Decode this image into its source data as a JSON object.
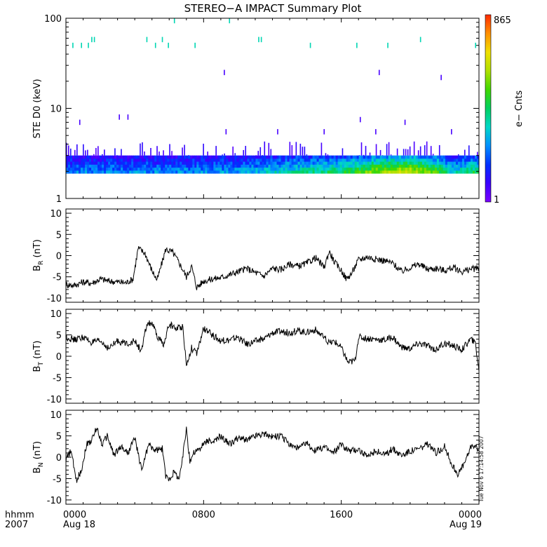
{
  "title": "STEREO−A IMPACT Summary Plot",
  "stamp": "Tue Nov  6 17:14:58 2007",
  "colorbar": {
    "label": "e− Cnts",
    "max_label": "865",
    "min_label": "1",
    "colors": [
      "#7a00ff",
      "#3a00ff",
      "#0030ff",
      "#0090ff",
      "#00d8c8",
      "#00d060",
      "#40d800",
      "#b0e000",
      "#f0e000",
      "#ff9000",
      "#ff2a00"
    ]
  },
  "time_axis": {
    "range_hours": [
      0,
      24
    ],
    "label_time": "hhmm",
    "label_year": "2007",
    "ticks": [
      {
        "t": 0,
        "time": "0000",
        "date": "Aug 18"
      },
      {
        "t": 8,
        "time": "0800",
        "date": ""
      },
      {
        "t": 16,
        "time": "1600",
        "date": ""
      },
      {
        "t": 24,
        "time": "0000",
        "date": "Aug 19"
      }
    ]
  },
  "chart_data": [
    {
      "type": "heatmap",
      "ylabel": "STE D0 (keV)",
      "yscale": "log",
      "ylim": [
        1,
        100
      ],
      "yticks": [
        "1",
        "10",
        "100"
      ],
      "xlim_hours": [
        0,
        24
      ],
      "main_band_keV": [
        1.9,
        3.0
      ],
      "intensity_profile": [
        {
          "t": 0,
          "v": 0.28
        },
        {
          "t": 5,
          "v": 0.3
        },
        {
          "t": 10,
          "v": 0.32
        },
        {
          "t": 13,
          "v": 0.42
        },
        {
          "t": 16,
          "v": 0.5
        },
        {
          "t": 17,
          "v": 0.58
        },
        {
          "t": 18.5,
          "v": 0.7
        },
        {
          "t": 20,
          "v": 0.74
        },
        {
          "t": 21.5,
          "v": 0.6
        },
        {
          "t": 22.5,
          "v": 0.38
        },
        {
          "t": 23.5,
          "v": 0.5
        },
        {
          "t": 24,
          "v": 0.48
        }
      ],
      "isolated_counts": [
        {
          "t": 0.4,
          "keV": 50
        },
        {
          "t": 0.9,
          "keV": 50
        },
        {
          "t": 1.3,
          "keV": 50
        },
        {
          "t": 1.5,
          "keV": 58
        },
        {
          "t": 1.65,
          "keV": 58
        },
        {
          "t": 4.7,
          "keV": 58
        },
        {
          "t": 5.2,
          "keV": 50
        },
        {
          "t": 5.6,
          "keV": 58
        },
        {
          "t": 5.95,
          "keV": 50
        },
        {
          "t": 6.3,
          "keV": 94
        },
        {
          "t": 7.5,
          "keV": 50
        },
        {
          "t": 9.5,
          "keV": 94
        },
        {
          "t": 11.2,
          "keV": 58
        },
        {
          "t": 11.35,
          "keV": 58
        },
        {
          "t": 14.2,
          "keV": 50
        },
        {
          "t": 16.9,
          "keV": 50
        },
        {
          "t": 18.7,
          "keV": 50
        },
        {
          "t": 20.6,
          "keV": 58
        },
        {
          "t": 23.8,
          "keV": 50
        },
        {
          "t": 9.2,
          "keV": 25
        },
        {
          "t": 18.2,
          "keV": 25
        },
        {
          "t": 21.8,
          "keV": 22
        },
        {
          "t": 0.8,
          "keV": 7
        },
        {
          "t": 3.1,
          "keV": 8
        },
        {
          "t": 3.6,
          "keV": 8
        },
        {
          "t": 17.1,
          "keV": 7.5
        },
        {
          "t": 19.7,
          "keV": 7
        },
        {
          "t": 9.3,
          "keV": 5.5
        },
        {
          "t": 12.3,
          "keV": 5.5
        },
        {
          "t": 15.0,
          "keV": 5.5
        },
        {
          "t": 18.0,
          "keV": 5.5
        },
        {
          "t": 22.4,
          "keV": 5.5
        }
      ]
    },
    {
      "type": "line",
      "ylabel_main": "B",
      "ylabel_sub": "R",
      "ylabel_unit": " (nT)",
      "ylim": [
        -11,
        11
      ],
      "yticks": [
        -10,
        -5,
        0,
        5,
        10
      ],
      "x": [
        0,
        0.5,
        1,
        1.5,
        2,
        2.5,
        3,
        3.5,
        3.9,
        4.2,
        4.6,
        5.0,
        5.3,
        5.8,
        6.2,
        6.6,
        7.0,
        7.3,
        7.6,
        8.0,
        8.5,
        9.0,
        9.5,
        10.0,
        10.5,
        11.0,
        11.5,
        12.0,
        12.5,
        13.0,
        13.5,
        14.0,
        14.5,
        15.0,
        15.3,
        15.6,
        16.0,
        16.3,
        16.6,
        17.0,
        17.5,
        18.0,
        18.5,
        19.0,
        19.5,
        20.0,
        20.5,
        21.0,
        21.5,
        22.0,
        22.5,
        23.0,
        23.5,
        24.0
      ],
      "y": [
        -6.8,
        -7.0,
        -6.2,
        -6.5,
        -5.5,
        -6.0,
        -6.2,
        -6.4,
        -5.5,
        1.8,
        0.5,
        -3.5,
        -5.8,
        1.5,
        0.8,
        -1.8,
        -5.0,
        -2.5,
        -7.5,
        -6.0,
        -5.5,
        -5.2,
        -4.5,
        -3.8,
        -3.0,
        -4.0,
        -4.8,
        -3.0,
        -3.3,
        -2.0,
        -2.5,
        -1.8,
        -0.5,
        -2.8,
        1.0,
        -1.5,
        -3.5,
        -5.5,
        -4.2,
        -1.0,
        -0.3,
        -0.8,
        -1.2,
        -1.8,
        -3.8,
        -2.8,
        -2.0,
        -3.2,
        -3.0,
        -3.5,
        -2.8,
        -3.8,
        -3.2,
        -3.0
      ]
    },
    {
      "type": "line",
      "ylabel_main": "B",
      "ylabel_sub": "T",
      "ylabel_unit": " (nT)",
      "ylim": [
        -11,
        11
      ],
      "yticks": [
        -10,
        -5,
        0,
        5,
        10
      ],
      "x": [
        0,
        0.5,
        1,
        1.5,
        2,
        2.5,
        3,
        3.5,
        4.0,
        4.4,
        4.7,
        5.0,
        5.3,
        5.7,
        6.0,
        6.4,
        6.8,
        7.0,
        7.3,
        7.6,
        8.0,
        8.5,
        9.0,
        9.5,
        10.0,
        10.5,
        11.0,
        11.5,
        12.0,
        12.5,
        13.0,
        13.5,
        14.0,
        14.5,
        15.0,
        15.3,
        15.6,
        16.0,
        16.4,
        16.8,
        17.0,
        17.5,
        18.0,
        18.5,
        19.0,
        19.5,
        20.0,
        20.5,
        21.0,
        21.5,
        22.0,
        22.5,
        23.0,
        23.5,
        23.8,
        24.0
      ],
      "y": [
        4.5,
        3.8,
        4.5,
        3.2,
        3.5,
        1.8,
        3.6,
        3.0,
        3.5,
        1.2,
        7.5,
        7.8,
        4.5,
        2.8,
        7.5,
        6.5,
        7.0,
        -2.3,
        2.0,
        0.5,
        6.5,
        5.0,
        3.6,
        3.8,
        4.5,
        2.8,
        3.5,
        4.0,
        5.5,
        5.8,
        5.5,
        6.0,
        5.6,
        6.2,
        4.2,
        3.0,
        3.5,
        2.0,
        -1.5,
        -1.0,
        4.5,
        4.2,
        4.0,
        3.8,
        4.5,
        2.0,
        1.8,
        3.0,
        2.5,
        1.5,
        3.0,
        2.5,
        1.5,
        4.0,
        3.0,
        -3.5
      ]
    },
    {
      "type": "line",
      "ylabel_main": "B",
      "ylabel_sub": "N",
      "ylabel_unit": " (nT)",
      "ylim": [
        -11,
        11
      ],
      "yticks": [
        -10,
        -5,
        0,
        5,
        10
      ],
      "x": [
        0,
        0.3,
        0.6,
        0.9,
        1.2,
        1.5,
        1.8,
        2.1,
        2.4,
        2.8,
        3.2,
        3.6,
        4.0,
        4.4,
        4.8,
        5.2,
        5.6,
        5.8,
        6.0,
        6.3,
        6.6,
        6.8,
        7.0,
        7.2,
        7.4,
        7.8,
        8.2,
        8.6,
        9.0,
        9.5,
        10.0,
        10.5,
        11.0,
        11.5,
        12.0,
        12.5,
        13.0,
        13.5,
        14.0,
        14.5,
        15.0,
        15.5,
        16.0,
        16.5,
        17.0,
        17.5,
        18.0,
        18.5,
        19.0,
        19.5,
        20.0,
        20.5,
        21.0,
        21.5,
        22.0,
        22.4,
        22.8,
        23.2,
        23.6,
        24.0
      ],
      "y": [
        -0.5,
        1.5,
        -5.5,
        -3.0,
        3.0,
        4.0,
        7.0,
        3.0,
        5.0,
        0.5,
        2.5,
        1.0,
        4.5,
        -3.0,
        3.0,
        1.5,
        2.0,
        -4.5,
        -5.0,
        -3.5,
        -5.0,
        0.5,
        7.0,
        -1.0,
        1.0,
        2.0,
        4.0,
        3.5,
        5.0,
        3.0,
        4.5,
        4.0,
        5.0,
        5.5,
        4.8,
        5.0,
        3.0,
        2.0,
        3.2,
        1.5,
        2.5,
        1.0,
        3.0,
        1.5,
        2.0,
        0.0,
        1.5,
        0.5,
        2.0,
        0.5,
        1.5,
        2.0,
        3.0,
        1.0,
        2.5,
        -1.5,
        -4.0,
        -1.0,
        3.0,
        1.5
      ]
    }
  ]
}
